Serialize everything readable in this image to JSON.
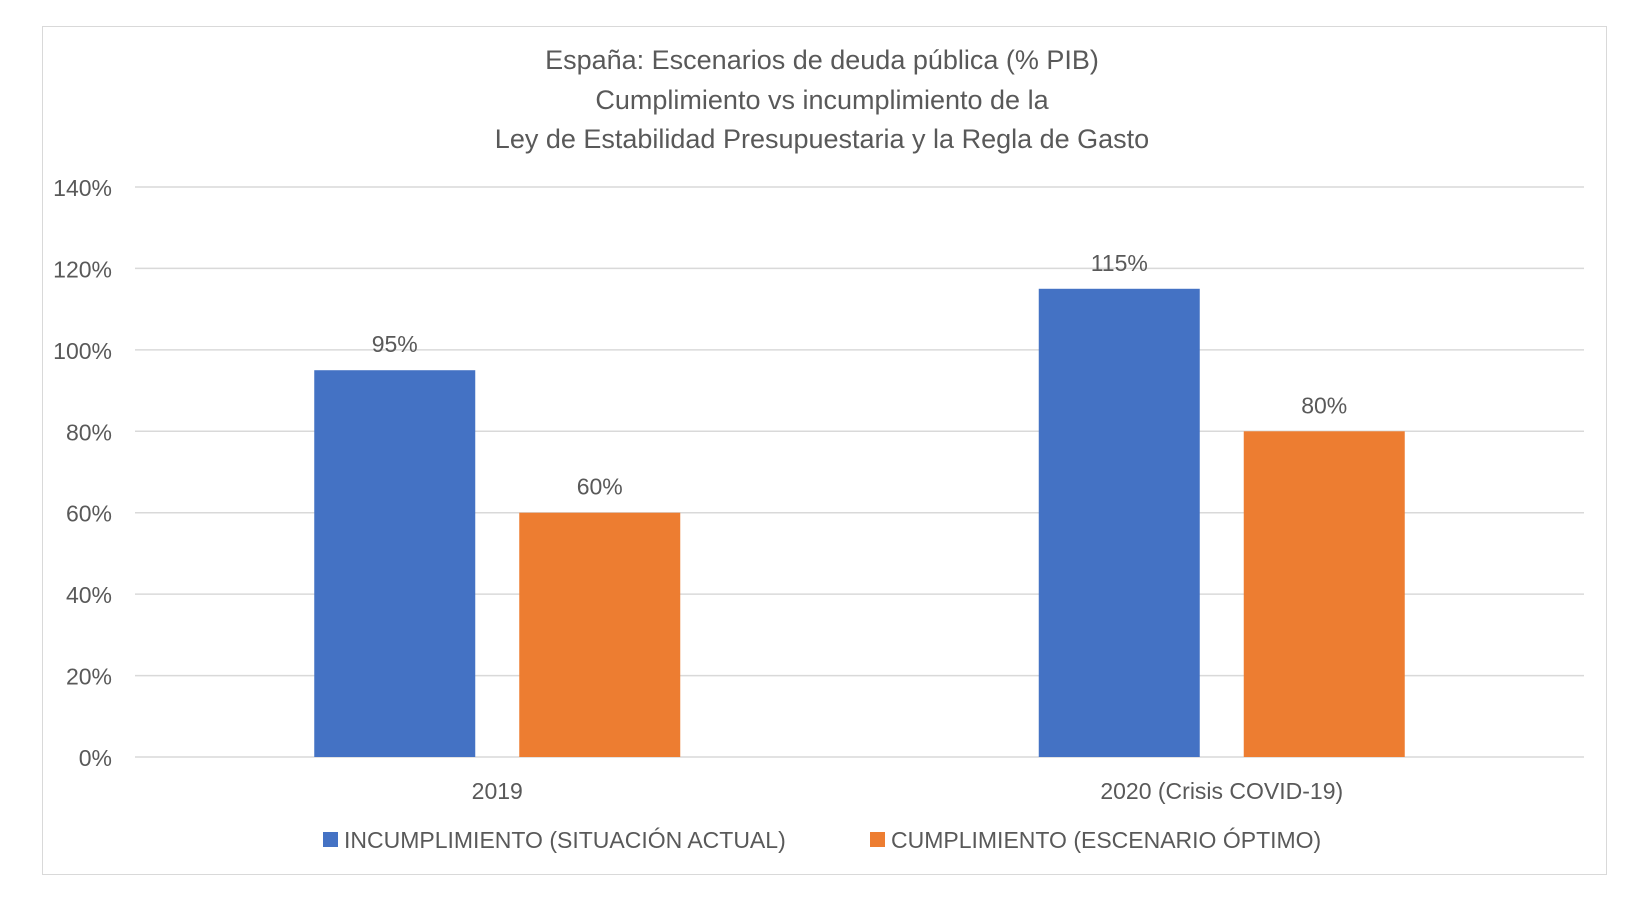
{
  "chart_data": {
    "type": "bar",
    "title": [
      "España: Escenarios de deuda pública (% PIB)",
      "Cumplimiento vs incumplimiento de la",
      "Ley de Estabilidad Presupuestaria y la Regla de Gasto"
    ],
    "categories": [
      "2019",
      "2020 (Crisis COVID-19)"
    ],
    "series": [
      {
        "name": "INCUMPLIMIENTO (SITUACIÓN ACTUAL)",
        "values": [
          95,
          115
        ],
        "labels": [
          "95%",
          "115%"
        ],
        "color": "#4472C4"
      },
      {
        "name": "CUMPLIMIENTO (ESCENARIO ÓPTIMO)",
        "values": [
          60,
          80
        ],
        "labels": [
          "60%",
          "80%"
        ],
        "color": "#ED7D31"
      }
    ],
    "ylim": [
      0,
      140
    ],
    "yticks": [
      "0%",
      "20%",
      "40%",
      "60%",
      "80%",
      "100%",
      "120%",
      "140%"
    ],
    "grid": true,
    "legend": "bottom",
    "xlabel": "",
    "ylabel": ""
  }
}
